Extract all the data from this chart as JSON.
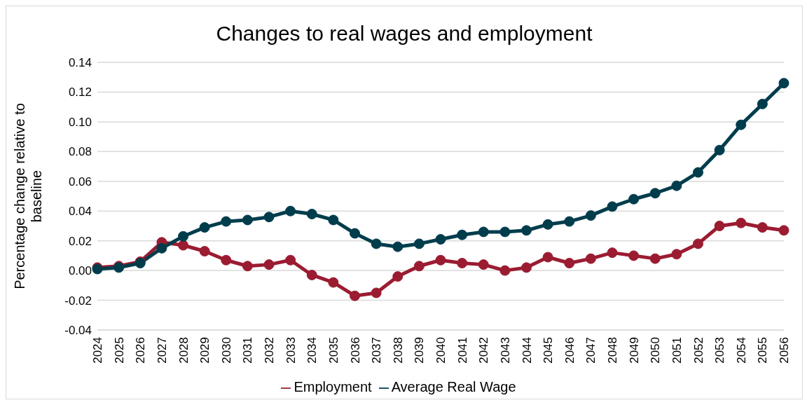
{
  "chart_data": {
    "type": "line",
    "title": "Changes to real wages and employment",
    "ylabel": "Percentage change relative to baseline",
    "categories": [
      "2024",
      "2025",
      "2026",
      "2027",
      "2028",
      "2029",
      "2030",
      "2031",
      "2032",
      "2033",
      "2034",
      "2035",
      "2036",
      "2037",
      "2038",
      "2039",
      "2040",
      "2041",
      "2042",
      "2043",
      "2044",
      "2045",
      "2046",
      "2047",
      "2048",
      "2049",
      "2050",
      "2051",
      "2052",
      "2053",
      "2054",
      "2055",
      "2056"
    ],
    "series": [
      {
        "name": "Employment",
        "color": "#9b1c31",
        "values": [
          0.002,
          0.003,
          0.006,
          0.019,
          0.017,
          0.013,
          0.007,
          0.003,
          0.004,
          0.007,
          -0.003,
          -0.008,
          -0.017,
          -0.015,
          -0.004,
          0.003,
          0.007,
          0.005,
          0.004,
          0.0,
          0.002,
          0.009,
          0.005,
          0.008,
          0.012,
          0.01,
          0.008,
          0.011,
          0.018,
          0.03,
          0.032,
          0.029,
          0.027
        ]
      },
      {
        "name": "Average Real Wage",
        "color": "#003d4c",
        "values": [
          0.001,
          0.002,
          0.005,
          0.015,
          0.023,
          0.029,
          0.033,
          0.034,
          0.036,
          0.04,
          0.038,
          0.034,
          0.025,
          0.018,
          0.016,
          0.018,
          0.021,
          0.024,
          0.026,
          0.026,
          0.027,
          0.031,
          0.033,
          0.037,
          0.043,
          0.048,
          0.052,
          0.057,
          0.066,
          0.081,
          0.098,
          0.112,
          0.126
        ]
      }
    ],
    "ylim": [
      -0.04,
      0.14
    ],
    "yticks": [
      {
        "value": -0.04,
        "label": "-0.04"
      },
      {
        "value": -0.02,
        "label": "-0.02"
      },
      {
        "value": 0,
        "label": "0.00"
      },
      {
        "value": 0.02,
        "label": "0.02"
      },
      {
        "value": 0.04,
        "label": "0.04"
      },
      {
        "value": 0.06,
        "label": "0.06"
      },
      {
        "value": 0.08,
        "label": "0.08"
      },
      {
        "value": 0.1,
        "label": "0.10"
      },
      {
        "value": 0.12,
        "label": "0.12"
      },
      {
        "value": 0.14,
        "label": "0.14"
      }
    ],
    "grid": "y",
    "legend": "bottom",
    "marker": "circle",
    "line_style": "solid"
  }
}
